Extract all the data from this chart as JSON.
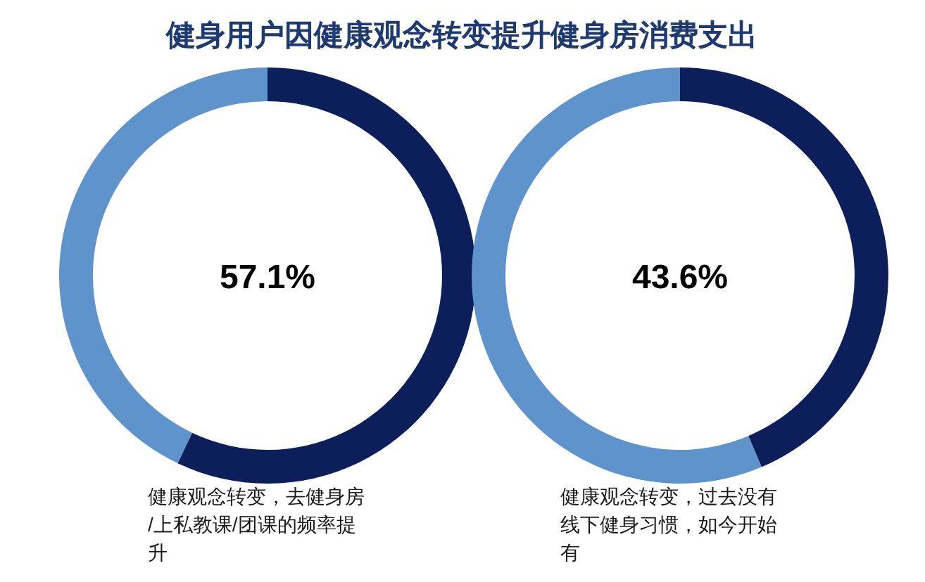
{
  "chart_data": [
    {
      "type": "donut",
      "title": "健身用户因健康观念转变提升健身房消费支出",
      "categories": [
        null,
        null
      ],
      "values": [
        57.1,
        42.9
      ],
      "colors": [
        "#0c1f5b",
        "#5e93cb"
      ],
      "annotations": [
        "57.1%",
        "健康观念转变，去健身房/上私教课/团课的频率提升"
      ]
    },
    {
      "type": "donut",
      "categories": [
        null,
        null
      ],
      "values": [
        43.6,
        56.4
      ],
      "colors": [
        "#0c1f5b",
        "#5e93cb"
      ],
      "annotations": [
        "43.6%",
        "健康观念转变，过去没有线下健身习惯，如今开始有"
      ]
    }
  ]
}
